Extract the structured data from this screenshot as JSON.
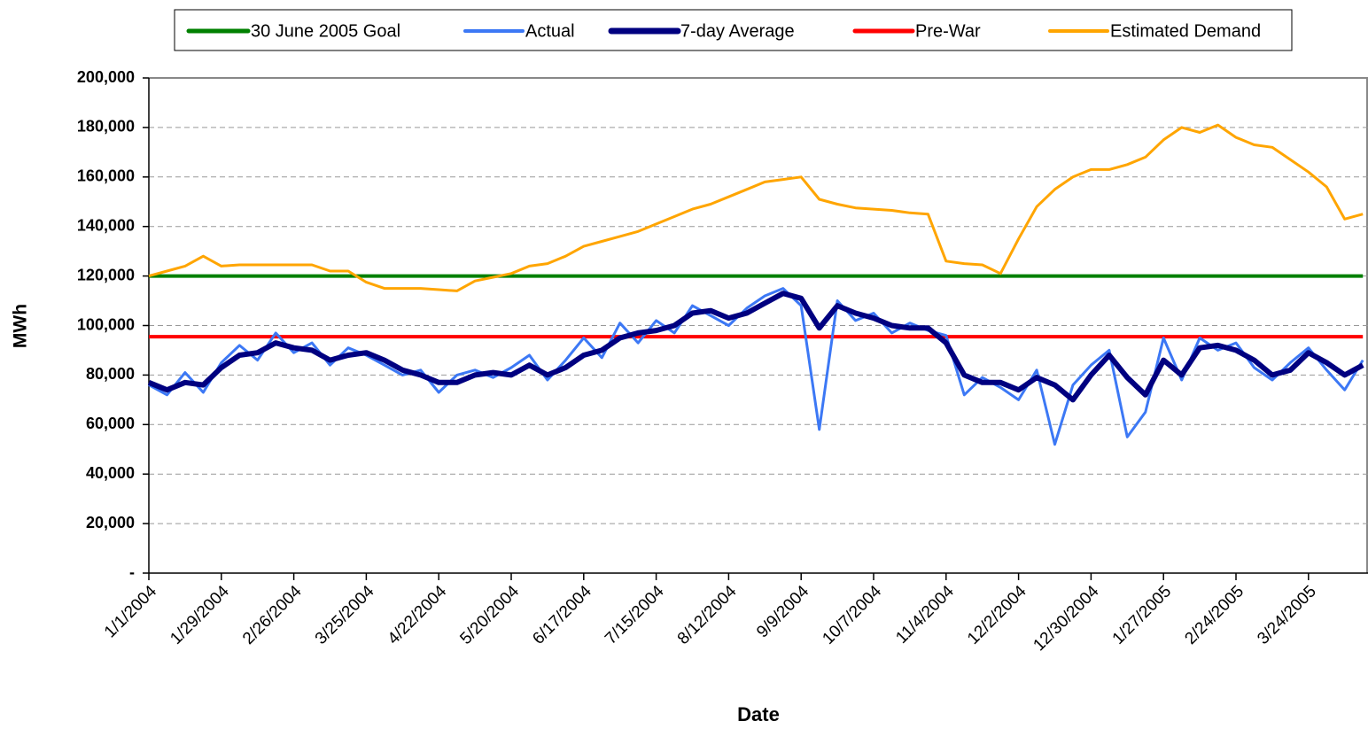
{
  "chart_data": {
    "type": "line",
    "xlabel": "Date",
    "ylabel": "MWh",
    "x": [
      "1/1/2004",
      "1/8/2004",
      "1/15/2004",
      "1/22/2004",
      "1/29/2004",
      "2/5/2004",
      "2/12/2004",
      "2/19/2004",
      "2/26/2004",
      "3/4/2004",
      "3/11/2004",
      "3/18/2004",
      "3/25/2004",
      "4/1/2004",
      "4/8/2004",
      "4/15/2004",
      "4/22/2004",
      "4/29/2004",
      "5/6/2004",
      "5/13/2004",
      "5/20/2004",
      "5/27/2004",
      "6/3/2004",
      "6/10/2004",
      "6/17/2004",
      "6/24/2004",
      "7/1/2004",
      "7/8/2004",
      "7/15/2004",
      "7/22/2004",
      "7/29/2004",
      "8/5/2004",
      "8/12/2004",
      "8/19/2004",
      "8/26/2004",
      "9/2/2004",
      "9/9/2004",
      "9/16/2004",
      "9/23/2004",
      "9/30/2004",
      "10/7/2004",
      "10/14/2004",
      "10/21/2004",
      "10/28/2004",
      "11/4/2004",
      "11/11/2004",
      "11/18/2004",
      "11/25/2004",
      "12/2/2004",
      "12/9/2004",
      "12/16/2004",
      "12/23/2004",
      "12/30/2004",
      "1/6/2005",
      "1/13/2005",
      "1/20/2005",
      "1/27/2005",
      "2/3/2005",
      "2/10/2005",
      "2/17/2005",
      "2/24/2005",
      "3/3/2005",
      "3/10/2005",
      "3/17/2005",
      "3/24/2005",
      "3/31/2005",
      "4/7/2005",
      "4/14/2005"
    ],
    "series": [
      {
        "name": "30 June 2005 Goal",
        "color": "#008000",
        "width": 4,
        "values": [
          120000,
          120000,
          120000,
          120000,
          120000,
          120000,
          120000,
          120000,
          120000,
          120000,
          120000,
          120000,
          120000,
          120000,
          120000,
          120000,
          120000,
          120000,
          120000,
          120000,
          120000,
          120000,
          120000,
          120000,
          120000,
          120000,
          120000,
          120000,
          120000,
          120000,
          120000,
          120000,
          120000,
          120000,
          120000,
          120000,
          120000,
          120000,
          120000,
          120000,
          120000,
          120000,
          120000,
          120000,
          120000,
          120000,
          120000,
          120000,
          120000,
          120000,
          120000,
          120000,
          120000,
          120000,
          120000,
          120000,
          120000,
          120000,
          120000,
          120000,
          120000,
          120000,
          120000,
          120000,
          120000,
          120000,
          120000,
          120000
        ]
      },
      {
        "name": "Actual",
        "color": "#3c78f5",
        "width": 3,
        "values": [
          76000,
          72000,
          81000,
          73000,
          85000,
          92000,
          86000,
          97000,
          89000,
          93000,
          84000,
          91000,
          88000,
          84000,
          80000,
          82000,
          73000,
          80000,
          82000,
          79000,
          83000,
          88000,
          78000,
          86000,
          95000,
          87000,
          101000,
          93000,
          102000,
          97000,
          108000,
          104000,
          100000,
          107000,
          112000,
          115000,
          108000,
          58000,
          110000,
          102000,
          105000,
          97000,
          101000,
          98000,
          96000,
          72000,
          79000,
          75000,
          70000,
          82000,
          52000,
          76000,
          84000,
          90000,
          55000,
          65000,
          95000,
          78000,
          95000,
          90000,
          93000,
          83000,
          78000,
          85000,
          91000,
          82000,
          74000,
          86000
        ]
      },
      {
        "name": "7-day Average",
        "color": "#000080",
        "width": 6,
        "values": [
          77000,
          74000,
          77000,
          76000,
          83000,
          88000,
          89000,
          93000,
          91000,
          90000,
          86000,
          88000,
          89000,
          86000,
          82000,
          80000,
          77000,
          77000,
          80000,
          81000,
          80000,
          84000,
          80000,
          83000,
          88000,
          90000,
          95000,
          97000,
          98000,
          100000,
          105000,
          106000,
          103000,
          105000,
          109000,
          113000,
          111000,
          99000,
          108000,
          105000,
          103000,
          100000,
          99000,
          99000,
          93000,
          80000,
          77000,
          77000,
          74000,
          79000,
          76000,
          70000,
          80000,
          88000,
          79000,
          72000,
          86000,
          80000,
          91000,
          92000,
          90000,
          86000,
          80000,
          82000,
          89000,
          85000,
          80000,
          84000
        ]
      },
      {
        "name": "Pre-War",
        "color": "#ff0000",
        "width": 4,
        "values": [
          95500,
          95500,
          95500,
          95500,
          95500,
          95500,
          95500,
          95500,
          95500,
          95500,
          95500,
          95500,
          95500,
          95500,
          95500,
          95500,
          95500,
          95500,
          95500,
          95500,
          95500,
          95500,
          95500,
          95500,
          95500,
          95500,
          95500,
          95500,
          95500,
          95500,
          95500,
          95500,
          95500,
          95500,
          95500,
          95500,
          95500,
          95500,
          95500,
          95500,
          95500,
          95500,
          95500,
          95500,
          95500,
          95500,
          95500,
          95500,
          95500,
          95500,
          95500,
          95500,
          95500,
          95500,
          95500,
          95500,
          95500,
          95500,
          95500,
          95500,
          95500,
          95500,
          95500,
          95500,
          95500,
          95500,
          95500,
          95500
        ]
      },
      {
        "name": "Estimated Demand",
        "color": "#ffa500",
        "width": 3,
        "values": [
          120000,
          122000,
          124000,
          128000,
          124000,
          124500,
          124500,
          124500,
          124500,
          124500,
          122000,
          122000,
          117500,
          115000,
          115000,
          115000,
          114500,
          114000,
          118000,
          119500,
          121000,
          124000,
          125000,
          128000,
          132000,
          134000,
          136000,
          138000,
          141000,
          144000,
          147000,
          149000,
          152000,
          155000,
          158000,
          159000,
          160000,
          151000,
          149000,
          147500,
          147000,
          146500,
          145500,
          145000,
          126000,
          125000,
          124500,
          121000,
          135000,
          148000,
          155000,
          160000,
          163000,
          163000,
          165000,
          168000,
          175000,
          180000,
          178000,
          181000,
          176000,
          173000,
          172000,
          167000,
          162000,
          156000,
          143000,
          145000
        ]
      }
    ],
    "draw_order": [
      0,
      3,
      4,
      1,
      2
    ],
    "xlim": [
      "1/1/2004",
      "4/16/2005"
    ],
    "xticks": [
      "1/1/2004",
      "1/29/2004",
      "2/26/2004",
      "3/25/2004",
      "4/22/2004",
      "5/20/2004",
      "6/17/2004",
      "7/15/2004",
      "8/12/2004",
      "9/9/2004",
      "10/7/2004",
      "11/4/2004",
      "12/2/2004",
      "12/30/2004",
      "1/27/2005",
      "2/24/2005",
      "3/24/2005"
    ],
    "ylim": [
      0,
      200000
    ],
    "yticks": [
      {
        "value": 0,
        "label": "-"
      },
      {
        "value": 20000,
        "label": "20,000"
      },
      {
        "value": 40000,
        "label": "40,000"
      },
      {
        "value": 60000,
        "label": "60,000"
      },
      {
        "value": 80000,
        "label": "80,000"
      },
      {
        "value": 100000,
        "label": "100,000"
      },
      {
        "value": 120000,
        "label": "120,000"
      },
      {
        "value": 140000,
        "label": "140,000"
      },
      {
        "value": 160000,
        "label": "160,000"
      },
      {
        "value": 180000,
        "label": "180,000"
      },
      {
        "value": 200000,
        "label": "200,000"
      }
    ],
    "grid": true,
    "legend": "top"
  }
}
